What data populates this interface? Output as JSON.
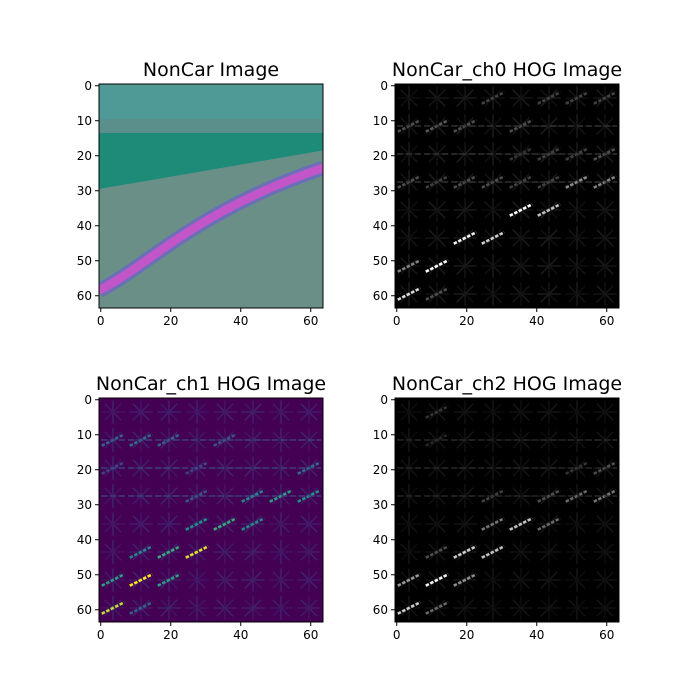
{
  "chart_data": [
    {
      "type": "heatmap",
      "title": "NonCar Image",
      "render": "rgb",
      "xlim": [
        0,
        64
      ],
      "ylim": [
        0,
        64
      ],
      "xticks": [
        0,
        20,
        40,
        60
      ],
      "yticks": [
        0,
        10,
        20,
        30,
        40,
        50,
        60
      ],
      "colors": {
        "sky": "#4f9a96",
        "grass": "#1e8a78",
        "road": "#6a8f86",
        "lane": "#c255c8",
        "lane_edge": "#6a6fb8"
      }
    },
    {
      "type": "heatmap",
      "title": "NonCar_ch0 HOG Image",
      "render": "gray",
      "xlim": [
        0,
        64
      ],
      "ylim": [
        0,
        64
      ],
      "xticks": [
        0,
        20,
        40,
        60
      ],
      "yticks": [
        0,
        10,
        20,
        30,
        40,
        50,
        60
      ],
      "cell_size": 8,
      "strong_cells": [
        [
          0,
          60,
          0.85
        ],
        [
          1,
          52,
          1.0
        ],
        [
          2,
          44,
          0.95
        ],
        [
          3,
          44,
          0.8
        ],
        [
          4,
          36,
          1.0
        ],
        [
          5,
          36,
          0.75
        ],
        [
          6,
          28,
          0.55
        ],
        [
          7,
          28,
          0.5
        ],
        [
          3,
          28,
          0.3
        ],
        [
          2,
          28,
          0.3
        ],
        [
          0,
          28,
          0.3
        ],
        [
          1,
          28,
          0.25
        ],
        [
          4,
          28,
          0.25
        ],
        [
          5,
          28,
          0.25
        ],
        [
          0,
          12,
          0.3
        ],
        [
          1,
          12,
          0.35
        ],
        [
          2,
          12,
          0.3
        ],
        [
          4,
          12,
          0.3
        ],
        [
          5,
          20,
          0.25
        ],
        [
          6,
          20,
          0.25
        ],
        [
          7,
          20,
          0.3
        ],
        [
          4,
          20,
          0.2
        ],
        [
          0,
          52,
          0.5
        ],
        [
          1,
          60,
          0.3
        ],
        [
          3,
          4,
          0.25
        ],
        [
          5,
          4,
          0.25
        ],
        [
          6,
          4,
          0.25
        ],
        [
          7,
          4,
          0.25
        ]
      ],
      "background_level": 0.1
    },
    {
      "type": "heatmap",
      "title": "NonCar_ch1 HOG Image",
      "render": "viridis",
      "xlim": [
        0,
        64
      ],
      "ylim": [
        0,
        64
      ],
      "xticks": [
        0,
        20,
        40,
        60
      ],
      "yticks": [
        0,
        10,
        20,
        30,
        40,
        50,
        60
      ],
      "cell_size": 8,
      "strong_cells": [
        [
          0,
          60,
          0.9
        ],
        [
          1,
          60,
          0.3
        ],
        [
          1,
          52,
          1.0
        ],
        [
          0,
          52,
          0.55
        ],
        [
          2,
          52,
          0.55
        ],
        [
          2,
          44,
          0.6
        ],
        [
          3,
          44,
          0.95
        ],
        [
          1,
          44,
          0.45
        ],
        [
          4,
          36,
          0.6
        ],
        [
          3,
          36,
          0.5
        ],
        [
          5,
          36,
          0.45
        ],
        [
          6,
          28,
          0.55
        ],
        [
          7,
          28,
          0.5
        ],
        [
          5,
          28,
          0.45
        ],
        [
          3,
          28,
          0.25
        ],
        [
          0,
          12,
          0.3
        ],
        [
          1,
          12,
          0.35
        ],
        [
          2,
          12,
          0.3
        ],
        [
          4,
          12,
          0.25
        ],
        [
          7,
          20,
          0.35
        ],
        [
          0,
          20,
          0.2
        ],
        [
          3,
          20,
          0.2
        ]
      ],
      "background_level": 0.1
    },
    {
      "type": "heatmap",
      "title": "NonCar_ch2 HOG Image",
      "render": "gray",
      "xlim": [
        0,
        64
      ],
      "ylim": [
        0,
        64
      ],
      "xticks": [
        0,
        20,
        40,
        60
      ],
      "yticks": [
        0,
        10,
        20,
        30,
        40,
        50,
        60
      ],
      "cell_size": 8,
      "strong_cells": [
        [
          0,
          60,
          0.8
        ],
        [
          1,
          60,
          0.4
        ],
        [
          1,
          52,
          0.95
        ],
        [
          0,
          52,
          0.6
        ],
        [
          2,
          52,
          0.55
        ],
        [
          2,
          44,
          0.8
        ],
        [
          3,
          44,
          0.75
        ],
        [
          1,
          44,
          0.3
        ],
        [
          4,
          36,
          0.75
        ],
        [
          3,
          36,
          0.45
        ],
        [
          5,
          36,
          0.4
        ],
        [
          6,
          28,
          0.4
        ],
        [
          7,
          28,
          0.45
        ],
        [
          5,
          28,
          0.3
        ],
        [
          3,
          28,
          0.25
        ],
        [
          1,
          4,
          0.2
        ],
        [
          1,
          12,
          0.15
        ],
        [
          7,
          20,
          0.3
        ],
        [
          6,
          20,
          0.2
        ]
      ],
      "background_level": 0.08
    }
  ]
}
